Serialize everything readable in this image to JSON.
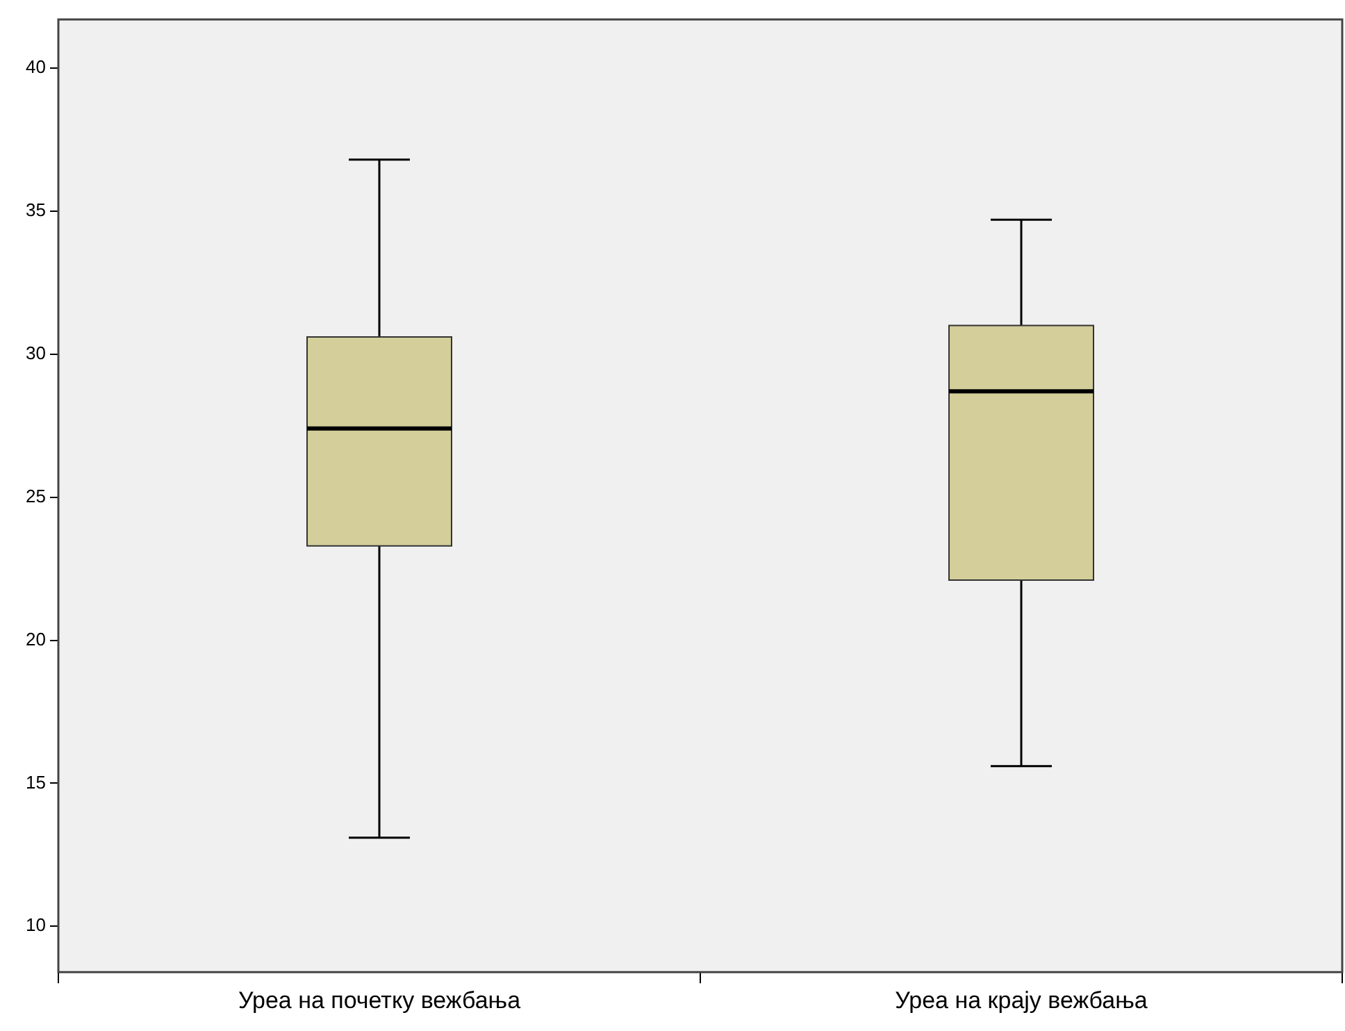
{
  "chart_data": {
    "type": "box",
    "categories": [
      "Уреа на почетку вежбања",
      "Уреа на крају вежбања"
    ],
    "color": "#d3ce9a",
    "boxes": [
      {
        "low": 13.1,
        "q1": 23.3,
        "median": 27.4,
        "q3": 30.6,
        "high": 36.8
      },
      {
        "low": 15.6,
        "q1": 22.1,
        "median": 28.7,
        "q3": 31.0,
        "high": 34.7
      }
    ],
    "ylim": [
      8.4,
      41.7
    ],
    "yticks": [
      10,
      15,
      20,
      25,
      30,
      35,
      40
    ]
  }
}
